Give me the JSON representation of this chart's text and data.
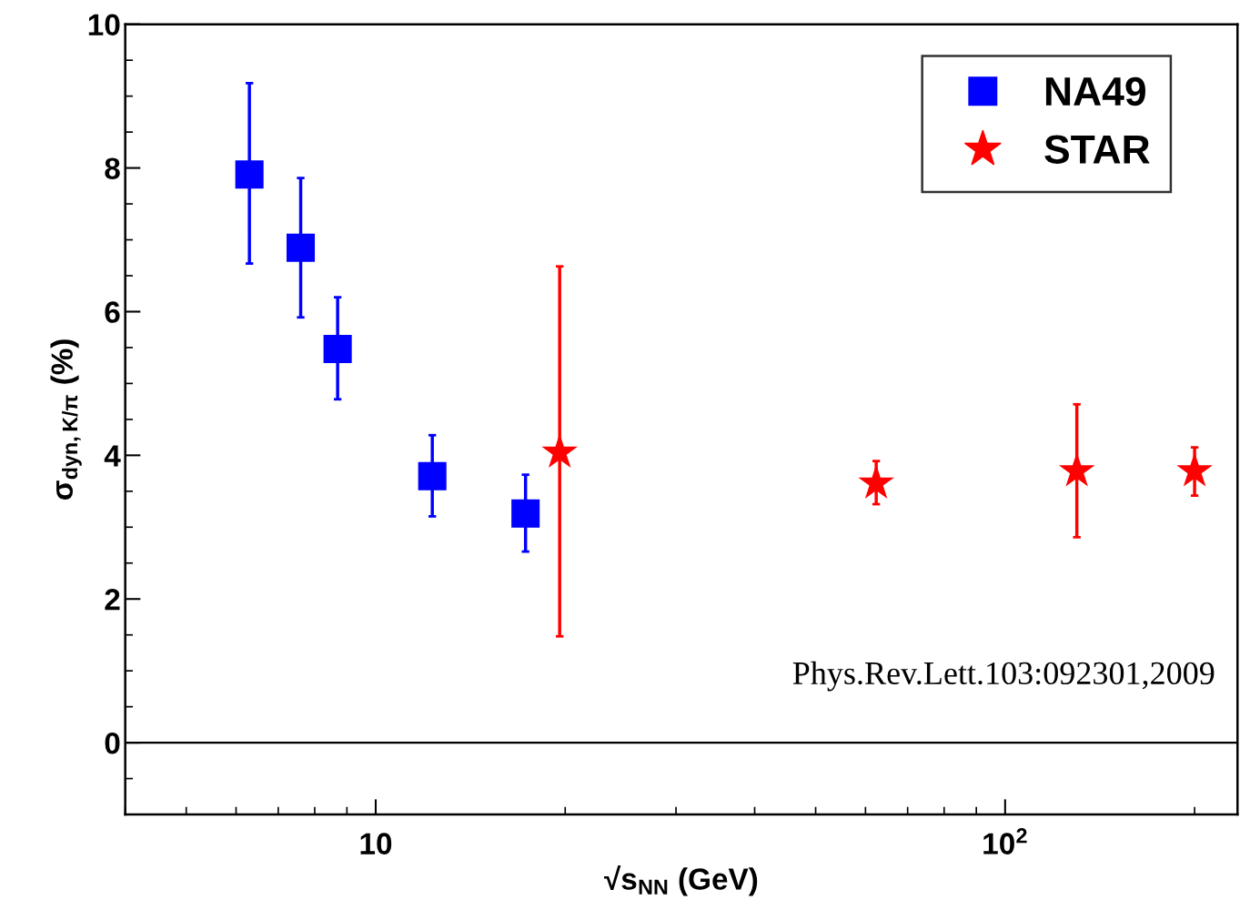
{
  "chart_data": {
    "type": "scatter",
    "xlabel": "√s$_{NN}$ (GeV)",
    "ylabel": "σ$_{dyn,K/π}$ (%)",
    "log": "x",
    "xlim": [
      4,
      234
    ],
    "xticks": [
      {
        "value": 10,
        "label": "10"
      },
      {
        "value": 100,
        "label": "10$^{2}$"
      }
    ],
    "ylim": [
      -1,
      10
    ],
    "yticks": [
      0,
      2,
      4,
      6,
      8,
      10
    ],
    "grid": false,
    "legend": "top right",
    "ref_lines": [
      {
        "axis": "y",
        "value": 0,
        "color": "#000000",
        "line_style": "solid"
      }
    ],
    "annotations": [
      "Phys.Rev.Lett.103:092301,2009"
    ],
    "series": [
      {
        "name": "NA49",
        "color": "#0000ff",
        "marker": "square",
        "x": [
          6.3,
          7.6,
          8.7,
          12.3,
          17.3
        ],
        "values": [
          7.91,
          6.89,
          5.48,
          3.71,
          3.19
        ],
        "errors": [
          [
            6.67,
            9.18
          ],
          [
            5.92,
            7.86
          ],
          [
            4.78,
            6.2
          ],
          [
            3.15,
            4.28
          ],
          [
            2.66,
            3.73
          ]
        ]
      },
      {
        "name": "STAR",
        "color": "#ff0000",
        "marker": "star",
        "x": [
          19.6,
          62.4,
          130,
          200
        ],
        "values": [
          4.04,
          3.61,
          3.78,
          3.78
        ],
        "errors": [
          [
            1.48,
            6.63
          ],
          [
            3.32,
            3.92
          ],
          [
            2.86,
            4.71
          ],
          [
            3.44,
            4.11
          ]
        ]
      }
    ]
  }
}
